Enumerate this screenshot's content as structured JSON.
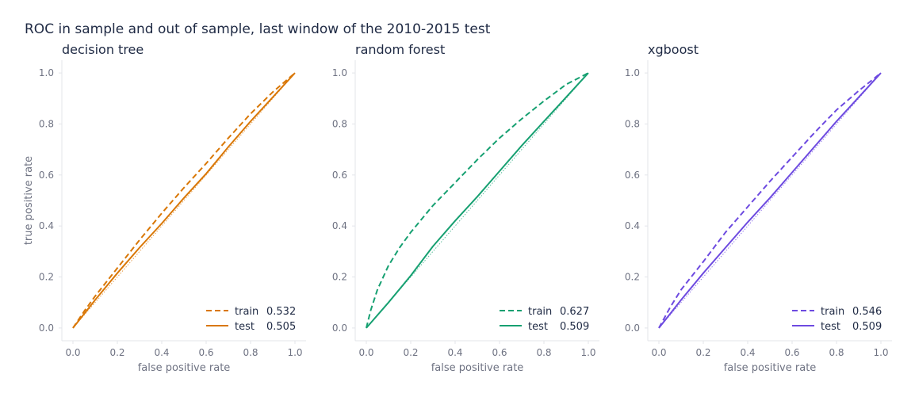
{
  "suptitle": "ROC in sample and out of sample, last window of the 2010-2015 test",
  "chart_data": [
    {
      "type": "line",
      "title": "decision tree",
      "xlabel": "false positive rate",
      "ylabel": "true positive rate",
      "xlim": [
        -0.05,
        1.05
      ],
      "ylim": [
        -0.05,
        1.05
      ],
      "xticks": [
        "0.0",
        "0.2",
        "0.4",
        "0.6",
        "0.8",
        "1.0"
      ],
      "yticks": [
        "0.0",
        "0.2",
        "0.4",
        "0.6",
        "0.8",
        "1.0"
      ],
      "color": "#d97706",
      "legend_position": "lower-right",
      "chance_line": true,
      "series": [
        {
          "name": "train",
          "style": "dashed",
          "auc_label": "0.532",
          "x": [
            0,
            0.05,
            0.1,
            0.2,
            0.3,
            0.4,
            0.5,
            0.6,
            0.7,
            0.8,
            0.9,
            1.0
          ],
          "y": [
            0,
            0.065,
            0.125,
            0.235,
            0.345,
            0.45,
            0.55,
            0.645,
            0.745,
            0.84,
            0.925,
            1.0
          ]
        },
        {
          "name": "test",
          "style": "solid",
          "auc_label": "0.505",
          "x": [
            0,
            0.05,
            0.1,
            0.2,
            0.3,
            0.4,
            0.5,
            0.6,
            0.7,
            0.8,
            0.9,
            1.0
          ],
          "y": [
            0,
            0.055,
            0.11,
            0.215,
            0.315,
            0.41,
            0.51,
            0.605,
            0.71,
            0.81,
            0.905,
            1.0
          ]
        }
      ]
    },
    {
      "type": "line",
      "title": "random forest",
      "xlabel": "false positive rate",
      "ylabel": "",
      "xlim": [
        -0.05,
        1.05
      ],
      "ylim": [
        -0.05,
        1.05
      ],
      "xticks": [
        "0.0",
        "0.2",
        "0.4",
        "0.6",
        "0.8",
        "1.0"
      ],
      "yticks": [
        "0.0",
        "0.2",
        "0.4",
        "0.6",
        "0.8",
        "1.0"
      ],
      "color": "#16a071",
      "legend_position": "lower-right",
      "chance_line": true,
      "series": [
        {
          "name": "train",
          "style": "dashed",
          "auc_label": "0.627",
          "x": [
            0,
            0.02,
            0.05,
            0.1,
            0.15,
            0.2,
            0.3,
            0.4,
            0.5,
            0.6,
            0.7,
            0.8,
            0.9,
            1.0
          ],
          "y": [
            0,
            0.07,
            0.15,
            0.245,
            0.315,
            0.375,
            0.48,
            0.57,
            0.66,
            0.745,
            0.82,
            0.89,
            0.955,
            1.0
          ]
        },
        {
          "name": "test",
          "style": "solid",
          "auc_label": "0.509",
          "x": [
            0,
            0.1,
            0.2,
            0.3,
            0.4,
            0.5,
            0.6,
            0.7,
            0.8,
            0.9,
            1.0
          ],
          "y": [
            0,
            0.1,
            0.205,
            0.32,
            0.42,
            0.515,
            0.615,
            0.715,
            0.81,
            0.905,
            1.0
          ]
        }
      ]
    },
    {
      "type": "line",
      "title": "xgboost",
      "xlabel": "false positive rate",
      "ylabel": "",
      "xlim": [
        -0.05,
        1.05
      ],
      "ylim": [
        -0.05,
        1.05
      ],
      "xticks": [
        "0.0",
        "0.2",
        "0.4",
        "0.6",
        "0.8",
        "1.0"
      ],
      "yticks": [
        "0.0",
        "0.2",
        "0.4",
        "0.6",
        "0.8",
        "1.0"
      ],
      "color": "#6d4ae0",
      "legend_position": "lower-right",
      "chance_line": true,
      "series": [
        {
          "name": "train",
          "style": "dashed",
          "auc_label": "0.546",
          "x": [
            0,
            0.05,
            0.1,
            0.2,
            0.3,
            0.4,
            0.5,
            0.6,
            0.7,
            0.8,
            0.9,
            1.0
          ],
          "y": [
            0,
            0.08,
            0.15,
            0.26,
            0.375,
            0.475,
            0.575,
            0.67,
            0.765,
            0.855,
            0.93,
            1.0
          ]
        },
        {
          "name": "test",
          "style": "solid",
          "auc_label": "0.509",
          "x": [
            0,
            0.05,
            0.1,
            0.2,
            0.3,
            0.4,
            0.5,
            0.6,
            0.7,
            0.8,
            0.9,
            1.0
          ],
          "y": [
            0,
            0.055,
            0.11,
            0.215,
            0.315,
            0.415,
            0.51,
            0.61,
            0.71,
            0.81,
            0.905,
            1.0
          ]
        }
      ]
    }
  ]
}
